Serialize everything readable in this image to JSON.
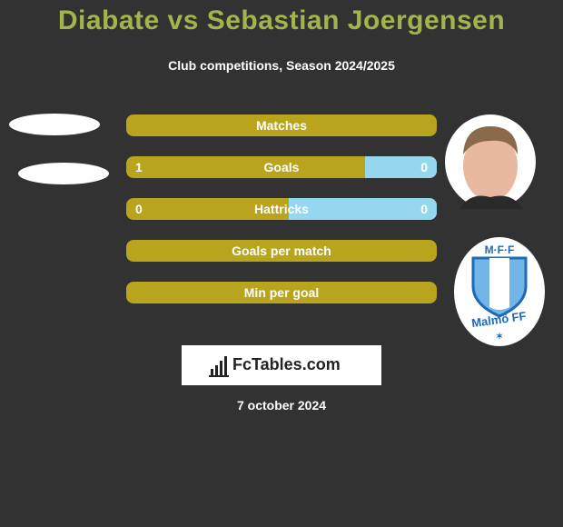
{
  "header": {
    "title": "Diabate vs Sebastian Joergensen",
    "subtitle": "Club competitions, Season 2024/2025"
  },
  "rows": [
    {
      "label": "Matches"
    },
    {
      "label": "Goals",
      "left": 1,
      "right": 0
    },
    {
      "label": "Hattricks",
      "left": 0,
      "right": 0
    },
    {
      "label": "Goals per match"
    },
    {
      "label": "Min per goal"
    }
  ],
  "club_badge": {
    "top": "M·F·F",
    "name": "Malmö FF"
  },
  "brand": "FcTables.com",
  "date": "7 october 2024"
}
